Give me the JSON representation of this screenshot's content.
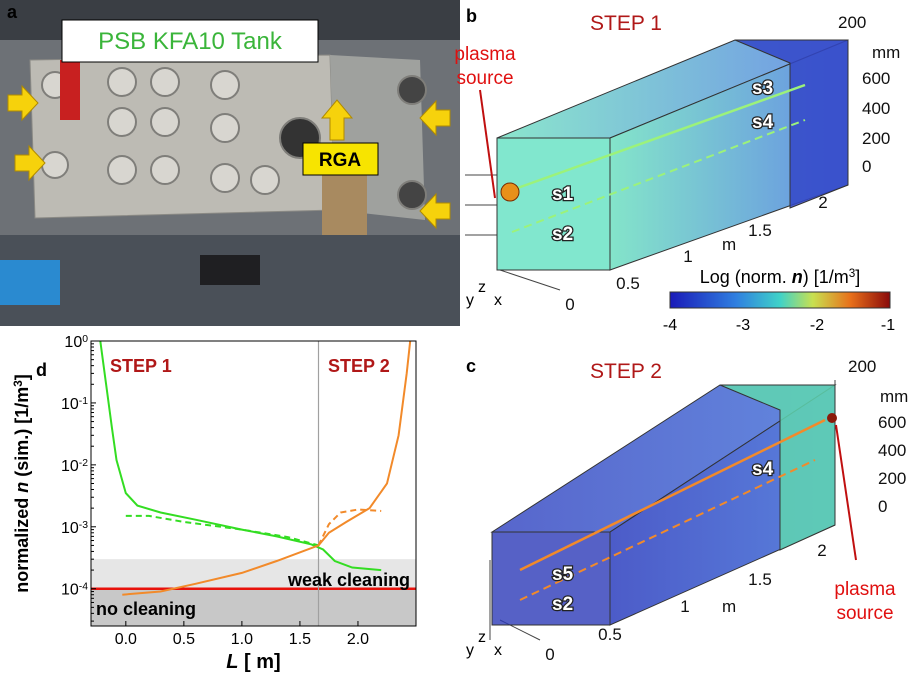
{
  "panels": {
    "a": {
      "label": "a",
      "title": "PSB KFA10 Tank",
      "rga": "RGA"
    },
    "b": {
      "label": "b",
      "step": "STEP 1",
      "source": [
        "plasma",
        "source"
      ],
      "ports": [
        "s1",
        "s2",
        "s3",
        "s4"
      ],
      "length_ticks": [
        "0",
        "0.5",
        "1",
        "1.5",
        "2"
      ],
      "length_unit": "m",
      "height_ticks": [
        "0",
        "200",
        "400",
        "600"
      ],
      "width_tick": "200",
      "height_unit": "mm",
      "axes": [
        "y",
        "z",
        "x"
      ]
    },
    "colorbar": {
      "parts": [
        {
          "text": "Log (norm. "
        },
        {
          "text": "n",
          "style": "bold-italic"
        },
        {
          "text": ") [1/m"
        },
        {
          "text": "3",
          "style": "sup"
        },
        {
          "text": "]"
        }
      ],
      "ticks": [
        "-4",
        "-3",
        "-2",
        "-1"
      ]
    },
    "c": {
      "label": "c",
      "step": "STEP 2",
      "source": [
        "plasma",
        "source"
      ],
      "ports": [
        "s4",
        "s5",
        "s2"
      ],
      "length_ticks": [
        "0",
        "0.5",
        "1",
        "1.5",
        "2"
      ],
      "length_unit": "m",
      "height_ticks": [
        "0",
        "200",
        "400",
        "600"
      ],
      "width_tick": "200",
      "height_unit": "mm",
      "axes": [
        "y",
        "z",
        "x"
      ]
    }
  },
  "chart_data": {
    "type": "line",
    "label": "d",
    "log_y": true,
    "x_label": [
      {
        "text": "L",
        "style": "italic"
      },
      {
        "text": " [ m]"
      }
    ],
    "y_label": [
      {
        "text": "normalized "
      },
      {
        "text": "n",
        "style": "italic"
      },
      {
        "text": " (sim.) [1/m"
      },
      {
        "text": "3",
        "style": "sup"
      },
      {
        "text": "]"
      }
    ],
    "xlim": [
      -0.3,
      2.5
    ],
    "xticks": [
      {
        "value": 0,
        "label": "0.0"
      },
      {
        "value": 0.5,
        "label": "0.5"
      },
      {
        "value": 1,
        "label": "1.0"
      },
      {
        "value": 1.5,
        "label": "1.5"
      },
      {
        "value": 2,
        "label": "2.0"
      }
    ],
    "ylim": [
      2.5e-05,
      1
    ],
    "yticks": [
      {
        "value": 1,
        "label": "10",
        "exp": "0"
      },
      {
        "value": 0.1,
        "label": "10",
        "exp": "-1"
      },
      {
        "value": 0.01,
        "label": "10",
        "exp": "-2"
      },
      {
        "value": 0.001,
        "label": "10",
        "exp": "-3"
      },
      {
        "value": 0.0001,
        "label": "10",
        "exp": "-4"
      }
    ],
    "bands": [
      {
        "label": "weak cleaning",
        "range": [
          0.0001,
          0.0003
        ],
        "color": "#e6e6e6"
      },
      {
        "label": "no cleaning",
        "range": [
          2.5e-05,
          0.0001
        ],
        "color": "#c8c8c8"
      }
    ],
    "hline": {
      "value": 0.0001,
      "color": "#e8120c"
    },
    "vline": {
      "value": 1.66,
      "color": "#a0a0a0"
    },
    "annotations": [
      {
        "text": "STEP 1",
        "color": "#b01818"
      },
      {
        "text": "STEP 2",
        "color": "#b01818"
      }
    ],
    "series": [
      {
        "color": "#33dd22",
        "dash": false,
        "x": [
          -0.22,
          -0.17,
          -0.12,
          -0.08,
          0.0,
          0.1,
          0.3,
          0.6,
          1.0,
          1.3,
          1.6,
          1.7,
          1.8,
          1.95,
          2.2
        ],
        "values": [
          1,
          0.2,
          0.04,
          0.012,
          0.0035,
          0.0022,
          0.0017,
          0.0013,
          0.0009,
          0.0007,
          0.00052,
          0.00043,
          0.00028,
          0.00022,
          0.0002
        ]
      },
      {
        "color": "#33dd22",
        "dash": true,
        "x": [
          0,
          0.2,
          0.5,
          1.0,
          1.4,
          1.66
        ],
        "values": [
          0.0015,
          0.0015,
          0.0012,
          0.0009,
          0.00068,
          0.0005
        ]
      },
      {
        "color": "#f28a2a",
        "dash": false,
        "x": [
          -0.03,
          0.3,
          0.6,
          1.0,
          1.3,
          1.66,
          1.75,
          1.9,
          2.1,
          2.25,
          2.35,
          2.42,
          2.45
        ],
        "values": [
          8e-05,
          9e-05,
          0.00012,
          0.00018,
          0.00028,
          0.0005,
          0.0008,
          0.0012,
          0.002,
          0.005,
          0.03,
          0.3,
          1
        ]
      },
      {
        "color": "#f28a2a",
        "dash": true,
        "x": [
          1.66,
          1.75,
          1.85,
          2.0,
          2.2
        ],
        "values": [
          0.0005,
          0.0011,
          0.0017,
          0.0019,
          0.0018
        ]
      }
    ]
  }
}
